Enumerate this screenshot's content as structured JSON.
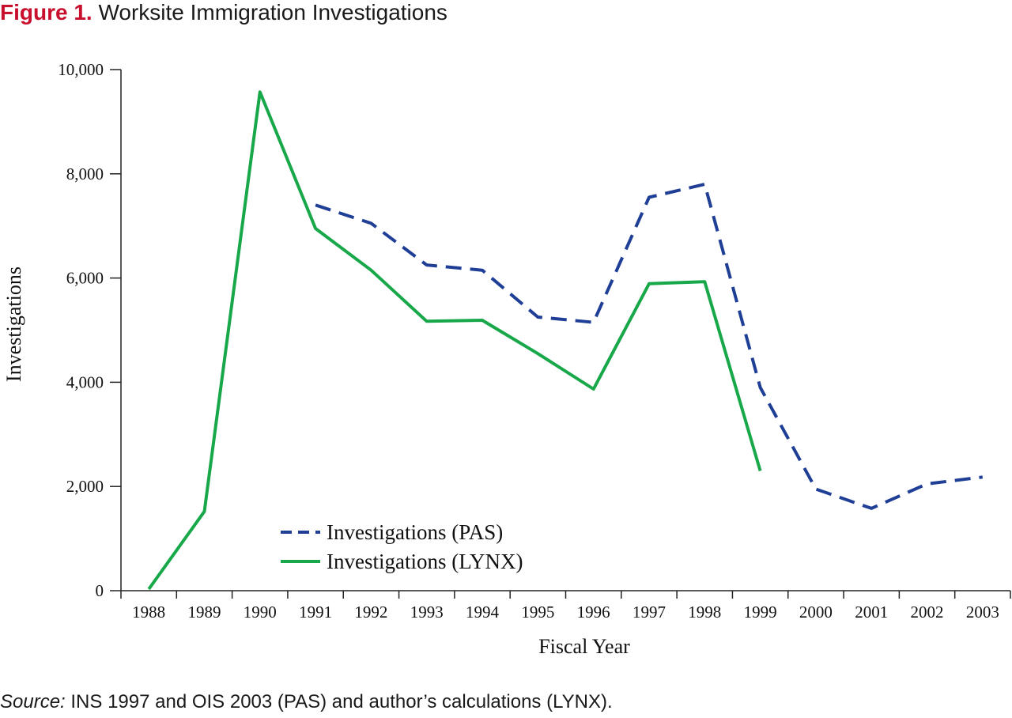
{
  "figure": {
    "number": "Figure 1.",
    "title": "Worksite Immigration Investigations"
  },
  "source": {
    "lead": "Source:",
    "text": " INS 1997 and OIS 2003 (PAS) and author’s calculations (LYNX)."
  },
  "colors": {
    "pas": "#1f3f96",
    "lynx": "#18a84a",
    "title_accent": "#c8102e"
  },
  "chart_data": {
    "type": "line",
    "xlabel": "Fiscal Year",
    "ylabel": "Investigations",
    "categories": [
      "1988",
      "1989",
      "1990",
      "1991",
      "1992",
      "1993",
      "1994",
      "1995",
      "1996",
      "1997",
      "1998",
      "1999",
      "2000",
      "2001",
      "2002",
      "2003"
    ],
    "ylim": [
      0,
      10000
    ],
    "yticks": [
      0,
      2000,
      4000,
      6000,
      8000,
      10000
    ],
    "ytick_labels": [
      "0",
      "2,000",
      "4,000",
      "6,000",
      "8,000",
      "10,000"
    ],
    "grid": false,
    "legend_position": "bottom-left",
    "series": [
      {
        "name": "Investigations (PAS)",
        "style": "dashed",
        "color": "#1f3f96",
        "values": [
          null,
          null,
          null,
          7400,
          7050,
          6250,
          6150,
          5250,
          5150,
          7550,
          7800,
          3900,
          1950,
          1580,
          2050,
          2180
        ]
      },
      {
        "name": "Investigations (LYNX)",
        "style": "solid",
        "color": "#18a84a",
        "values": [
          30,
          1520,
          9570,
          6950,
          6150,
          5170,
          5190,
          4550,
          3870,
          5890,
          5930,
          2300,
          null,
          null,
          null,
          null
        ]
      }
    ]
  }
}
